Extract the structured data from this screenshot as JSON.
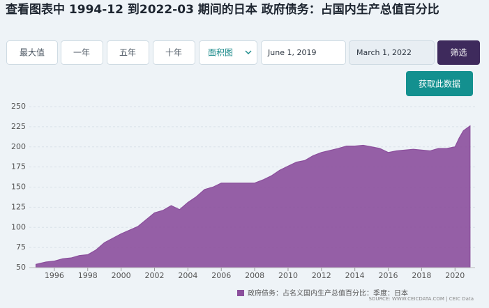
{
  "title": "查看图表中 1994-12 到2022-03 期间的日本 政府债务：占国内生产总值百分比",
  "controls": {
    "buttons": [
      "最大值",
      "一年",
      "五年",
      "十年"
    ],
    "chart_type": "面积图",
    "start_date": "June 1, 2019",
    "end_date": "March 1, 2022",
    "filter": "筛选",
    "get_data": "获取此数据"
  },
  "chart_data": {
    "type": "area",
    "x": [
      1994.9,
      1995.5,
      1996,
      1996.5,
      1997,
      1997.5,
      1998,
      1998.5,
      1999,
      2000,
      2001,
      2002,
      2002.5,
      2003,
      2003.5,
      2004,
      2004.5,
      2005,
      2005.5,
      2006,
      2007,
      2008,
      2008.5,
      2009,
      2009.5,
      2010,
      2010.5,
      2011,
      2011.5,
      2012,
      2013,
      2013.5,
      2014,
      2014.5,
      2015,
      2015.5,
      2016,
      2016.5,
      2017,
      2017.5,
      2018,
      2018.5,
      2019,
      2019.5,
      2020,
      2020.25,
      2020.5,
      2020.9
    ],
    "series": [
      {
        "name": "政府债务：占名义国内生产总值百分比：季度：日本",
        "color": "#8b4f9c",
        "values": [
          54,
          57,
          58,
          61,
          62,
          65,
          66,
          72,
          81,
          92,
          101,
          118,
          121,
          127,
          122,
          131,
          138,
          147,
          150,
          155,
          155,
          155,
          159,
          164,
          171,
          176,
          181,
          183,
          189,
          193,
          198,
          201,
          201,
          202,
          200,
          198,
          193,
          195,
          196,
          197,
          196,
          195,
          198,
          198,
          200,
          211,
          220,
          226
        ]
      }
    ],
    "xlim": [
      1994.5,
      2021.2
    ],
    "xticks": [
      1996,
      1998,
      2000,
      2002,
      2004,
      2006,
      2008,
      2010,
      2012,
      2014,
      2016,
      2018,
      2020
    ],
    "ylim": [
      50,
      250
    ],
    "yticks": [
      50,
      75,
      100,
      125,
      150,
      175,
      200,
      225,
      250
    ],
    "grid": true,
    "source": "SOURCE: WWW.CEICDATA.COM | CEIC Data"
  }
}
